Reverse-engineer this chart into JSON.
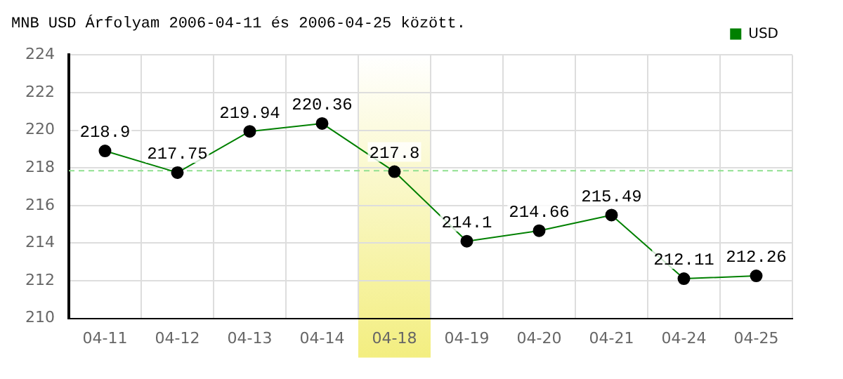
{
  "chart_data": {
    "type": "line",
    "title": "MNB USD Árfolyam 2006-04-11 és 2006-04-25 között.",
    "categories": [
      "04-11",
      "04-12",
      "04-13",
      "04-14",
      "04-18",
      "04-19",
      "04-20",
      "04-21",
      "04-24",
      "04-25"
    ],
    "series": [
      {
        "name": "USD",
        "color": "#008000",
        "values": [
          218.9,
          217.75,
          219.94,
          220.36,
          217.8,
          214.1,
          214.66,
          215.49,
          212.11,
          212.26
        ]
      }
    ],
    "ylim": [
      210,
      224
    ],
    "yticks": [
      210,
      212,
      214,
      216,
      218,
      220,
      222,
      224
    ],
    "ref_lines": [
      {
        "axis": "y",
        "value": 217.85,
        "color": "#90e090",
        "line_style": "dashed"
      }
    ],
    "bands": [
      {
        "axis": "x",
        "from": "04-18",
        "to": "04-18",
        "color": "#f3ee80"
      }
    ],
    "data_labels": true,
    "grid": true,
    "legend": "top right",
    "marker": "circle",
    "line_style": "solid"
  }
}
